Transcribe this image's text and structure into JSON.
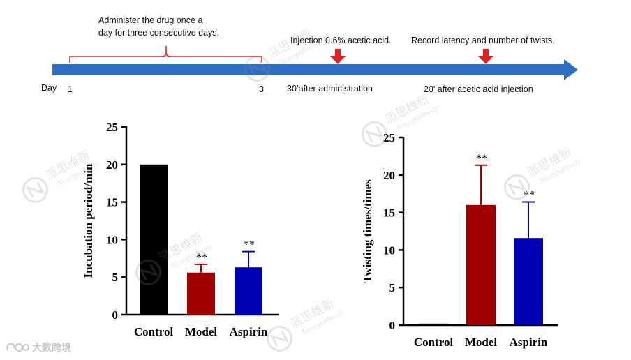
{
  "timeline": {
    "day_label": "Day",
    "day_start": "1",
    "day_end": "3",
    "dosing_note_line1": "Administer the drug once a",
    "dosing_note_line2": "day for three consecutive days.",
    "injection_label": "Injection 0.6% acetic acid.",
    "injection_sub": "30’after administration",
    "record_label": "Record latency and number of twists.",
    "record_sub": "20' after acetic acid injection",
    "arrow_color": "#2e6fc4",
    "marker_color": "#e02020",
    "brace_color": "#d62828"
  },
  "watermark": {
    "cn": "派思维新",
    "en": "Novopathway",
    "brand_corner": "大数跨境"
  },
  "colors": {
    "control": "#000000",
    "model": "#a00000",
    "aspirin": "#0000b4"
  },
  "chart_data": [
    {
      "type": "bar",
      "ylabel": "Incubation period/min",
      "xlabel": "",
      "categories": [
        "Control",
        "Model",
        "Aspirin"
      ],
      "values": [
        20,
        5.6,
        6.3
      ],
      "errors": [
        0,
        1.1,
        2.1
      ],
      "significance": [
        "",
        "**",
        "**"
      ],
      "ylim": [
        0,
        25
      ],
      "yticks": [
        "0",
        "5",
        "10",
        "15",
        "20",
        "25"
      ],
      "grid": false
    },
    {
      "type": "bar",
      "ylabel": "Twisting times/times",
      "xlabel": "",
      "categories": [
        "Control",
        "Model",
        "Aspirin"
      ],
      "values": [
        0.2,
        16,
        11.6
      ],
      "errors": [
        0,
        5.3,
        4.8
      ],
      "significance": [
        "",
        "**",
        "**"
      ],
      "ylim": [
        0,
        25
      ],
      "yticks": [
        "0",
        "5",
        "10",
        "15",
        "20",
        "25"
      ],
      "grid": false
    }
  ]
}
